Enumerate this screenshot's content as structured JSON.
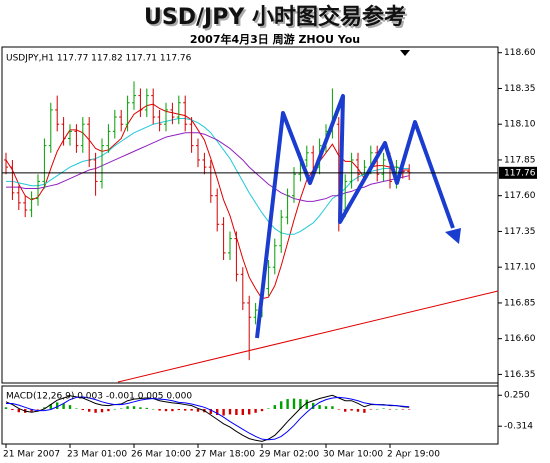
{
  "chart_data": [
    {
      "type": "candlestick",
      "title": "USD/JPY 小时图交易参考",
      "subtitle": "2007年4月3日    周游 ZHOU You",
      "info": "USDJPY,H1  117.77 117.82 117.71 117.76",
      "categories": [
        "21 Mar 2007",
        null,
        null,
        null,
        null,
        null,
        null,
        null,
        null,
        null,
        "23 Mar 01:00",
        null,
        null,
        null,
        null,
        null,
        null,
        null,
        null,
        null,
        "26 Mar 10:00",
        null,
        null,
        null,
        null,
        null,
        null,
        null,
        null,
        null,
        "27 Mar 18:00",
        null,
        null,
        null,
        null,
        null,
        null,
        null,
        null,
        null,
        "29 Mar 02:00",
        null,
        null,
        null,
        null,
        null,
        null,
        null,
        null,
        null,
        "30 Mar 10:00",
        null,
        null,
        null,
        null,
        null,
        null,
        null,
        null,
        null,
        "2 Apr 19:00",
        null,
        null,
        null
      ],
      "open": [
        117.85,
        117.8,
        117.62,
        117.55,
        117.5,
        117.58,
        117.7,
        117.95,
        118.2,
        118.1,
        118.0,
        118.05,
        117.95,
        118.1,
        117.85,
        117.7,
        117.95,
        118.05,
        118.15,
        118.1,
        118.25,
        118.3,
        118.2,
        118.3,
        118.15,
        118.1,
        118.2,
        118.15,
        118.25,
        118.1,
        117.95,
        117.85,
        117.8,
        117.6,
        117.4,
        117.2,
        117.3,
        117.05,
        116.85,
        116.75,
        116.8,
        116.95,
        117.1,
        117.25,
        117.45,
        117.6,
        117.75,
        117.85,
        117.9,
        117.8,
        117.95,
        118.05,
        118.1,
        117.5,
        117.7,
        117.85,
        117.75,
        117.8,
        117.9,
        117.75,
        117.85,
        117.7,
        117.8,
        117.77
      ],
      "high": [
        117.9,
        117.85,
        117.67,
        117.6,
        117.63,
        117.75,
        118.0,
        118.25,
        118.3,
        118.15,
        118.1,
        118.1,
        118.15,
        118.15,
        117.9,
        118.0,
        118.1,
        118.2,
        118.2,
        118.3,
        118.4,
        118.35,
        118.35,
        118.35,
        118.2,
        118.25,
        118.25,
        118.3,
        118.3,
        118.15,
        118.0,
        117.9,
        117.85,
        117.65,
        117.45,
        117.35,
        117.35,
        117.1,
        116.9,
        116.85,
        117.0,
        117.15,
        117.3,
        117.5,
        117.65,
        117.8,
        117.9,
        117.95,
        117.95,
        118.0,
        118.1,
        118.35,
        118.15,
        117.75,
        117.9,
        117.9,
        117.85,
        117.95,
        117.95,
        117.9,
        117.9,
        117.85,
        117.85,
        117.82
      ],
      "low": [
        117.75,
        117.57,
        117.5,
        117.45,
        117.45,
        117.53,
        117.65,
        117.9,
        118.05,
        117.95,
        117.95,
        117.9,
        117.9,
        117.8,
        117.6,
        117.65,
        117.9,
        118.0,
        118.05,
        118.05,
        118.2,
        118.15,
        118.15,
        118.1,
        118.05,
        118.05,
        118.1,
        118.1,
        118.05,
        117.9,
        117.8,
        117.75,
        117.55,
        117.35,
        117.15,
        117.15,
        117.0,
        116.8,
        116.45,
        116.7,
        116.75,
        116.9,
        117.05,
        117.2,
        117.4,
        117.55,
        117.7,
        117.8,
        117.75,
        117.75,
        117.9,
        118.0,
        117.35,
        117.45,
        117.65,
        117.7,
        117.7,
        117.75,
        117.7,
        117.7,
        117.65,
        117.65,
        117.72,
        117.71
      ],
      "close": [
        117.8,
        117.62,
        117.55,
        117.5,
        117.58,
        117.7,
        117.95,
        118.2,
        118.1,
        118.0,
        118.05,
        117.95,
        118.1,
        117.85,
        117.7,
        117.95,
        118.05,
        118.15,
        118.1,
        118.25,
        118.3,
        118.2,
        118.3,
        118.15,
        118.1,
        118.2,
        118.15,
        118.25,
        118.1,
        117.95,
        117.85,
        117.8,
        117.6,
        117.4,
        117.2,
        117.3,
        117.05,
        116.85,
        116.75,
        116.8,
        116.95,
        117.1,
        117.25,
        117.45,
        117.6,
        117.75,
        117.85,
        117.9,
        117.8,
        117.95,
        118.05,
        118.1,
        117.5,
        117.7,
        117.85,
        117.75,
        117.8,
        117.9,
        117.75,
        117.85,
        117.7,
        117.8,
        117.77,
        117.76
      ],
      "up_color": "#00a000",
      "down_color": "#d00000",
      "moving_averages": [
        {
          "color": "#e00000",
          "values": [
            117.85,
            117.78,
            117.68,
            117.6,
            117.57,
            117.59,
            117.66,
            117.79,
            117.91,
            117.99,
            118.06,
            118.06,
            118.04,
            117.99,
            117.93,
            117.91,
            117.92,
            117.96,
            118.0,
            118.1,
            118.17,
            118.2,
            118.23,
            118.24,
            118.21,
            118.19,
            118.18,
            118.17,
            118.16,
            118.13,
            118.06,
            117.99,
            117.86,
            117.72,
            117.57,
            117.46,
            117.31,
            117.16,
            117.03,
            116.95,
            116.88,
            116.89,
            116.97,
            117.11,
            117.27,
            117.43,
            117.58,
            117.71,
            117.78,
            117.84,
            117.9,
            117.96,
            117.88,
            117.84,
            117.84,
            117.79,
            117.72,
            117.8,
            117.81,
            117.81,
            117.8,
            117.8,
            117.78,
            117.78
          ]
        },
        {
          "color": "#22c8d8",
          "values": [
            117.7,
            117.7,
            117.69,
            117.68,
            117.67,
            117.67,
            117.68,
            117.71,
            117.74,
            117.77,
            117.8,
            117.82,
            117.84,
            117.85,
            117.86,
            117.88,
            117.91,
            117.95,
            117.98,
            118.01,
            118.04,
            118.06,
            118.08,
            118.1,
            118.11,
            118.12,
            118.13,
            118.14,
            118.14,
            118.13,
            118.11,
            118.08,
            118.04,
            117.98,
            117.92,
            117.86,
            117.78,
            117.7,
            117.62,
            117.55,
            117.48,
            117.42,
            117.37,
            117.34,
            117.33,
            117.33,
            117.35,
            117.38,
            117.41,
            117.46,
            117.52,
            117.58,
            117.61,
            117.65,
            117.7,
            117.73,
            117.75,
            117.77,
            117.78,
            117.79,
            117.79,
            117.8,
            117.79,
            117.79
          ]
        },
        {
          "color": "#9020c0",
          "values": [
            117.66,
            117.66,
            117.66,
            117.65,
            117.65,
            117.65,
            117.66,
            117.67,
            117.68,
            117.7,
            117.72,
            117.74,
            117.76,
            117.78,
            117.79,
            117.81,
            117.83,
            117.85,
            117.87,
            117.89,
            117.91,
            117.93,
            117.95,
            117.97,
            117.99,
            118.01,
            118.02,
            118.03,
            118.04,
            118.04,
            118.04,
            118.03,
            118.01,
            117.99,
            117.96,
            117.93,
            117.89,
            117.85,
            117.8,
            117.76,
            117.72,
            117.68,
            117.65,
            117.62,
            117.6,
            117.58,
            117.57,
            117.56,
            117.56,
            117.57,
            117.58,
            117.6,
            117.6,
            117.62,
            117.63,
            117.65,
            117.66,
            117.68,
            117.69,
            117.7,
            117.71,
            117.72,
            117.73,
            117.74
          ]
        }
      ],
      "ylim": [
        116.29,
        118.64
      ],
      "yticks": [
        {
          "value": 118.6,
          "label": "118.60"
        },
        118.35,
        {
          "value": 118.1,
          "label": "118.10"
        },
        117.85,
        {
          "value": 117.6,
          "label": "117.60"
        },
        117.35,
        {
          "value": 117.1,
          "label": "117.10"
        },
        116.85,
        {
          "value": 116.6,
          "label": "116.60"
        },
        116.35
      ],
      "last_price": 117.76
    },
    {
      "type": "macd",
      "label": "MACD(12,26,9) 0.003 -0.001 0.005 0.000",
      "histogram": {
        "up_color": "#00a000",
        "down_color": "#d00000",
        "values": [
          0.03,
          -0.02,
          -0.06,
          -0.07,
          -0.05,
          -0.01,
          0.03,
          0.09,
          0.12,
          0.1,
          0.07,
          0.01,
          -0.02,
          -0.05,
          -0.07,
          -0.06,
          -0.04,
          0,
          0.01,
          0.05,
          0.05,
          0.03,
          0.02,
          0,
          -0.03,
          -0.04,
          -0.04,
          -0.02,
          -0.03,
          -0.03,
          -0.05,
          -0.06,
          -0.09,
          -0.11,
          -0.12,
          -0.1,
          -0.11,
          -0.11,
          -0.1,
          -0.07,
          -0.04,
          0.01,
          0.07,
          0.14,
          0.18,
          0.19,
          0.18,
          0.17,
          0.11,
          0.07,
          0.05,
          0.05,
          -0.01,
          -0.05,
          -0.03,
          -0.05,
          -0.07,
          -0.01,
          0,
          0.01,
          -0.01,
          0,
          -0.01,
          -0.01
        ]
      },
      "series": [
        {
          "color": "#000000",
          "values": [
            0.13,
            0.08,
            0.01,
            -0.04,
            -0.06,
            -0.04,
            0,
            0.08,
            0.16,
            0.2,
            0.24,
            0.22,
            0.2,
            0.15,
            0.1,
            0.07,
            0.06,
            0.08,
            0.09,
            0.15,
            0.18,
            0.19,
            0.2,
            0.19,
            0.15,
            0.13,
            0.11,
            0.1,
            0.08,
            0.06,
            0.01,
            -0.03,
            -0.11,
            -0.19,
            -0.27,
            -0.33,
            -0.41,
            -0.48,
            -0.54,
            -0.57,
            -0.59,
            -0.55,
            -0.48,
            -0.36,
            -0.23,
            -0.11,
            0.01,
            0.11,
            0.15,
            0.19,
            0.22,
            0.25,
            0.2,
            0.15,
            0.15,
            0.1,
            0.04,
            0.08,
            0.08,
            0.08,
            0.06,
            0.06,
            0.04,
            0.03
          ]
        },
        {
          "color": "#0000ff",
          "values": [
            0.1,
            0.1,
            0.07,
            0.03,
            -0.01,
            -0.03,
            -0.03,
            -0.01,
            0.04,
            0.1,
            0.17,
            0.21,
            0.22,
            0.2,
            0.17,
            0.13,
            0.1,
            0.08,
            0.08,
            0.1,
            0.13,
            0.16,
            0.18,
            0.19,
            0.18,
            0.17,
            0.15,
            0.12,
            0.11,
            0.09,
            0.06,
            0.03,
            -0.02,
            -0.08,
            -0.15,
            -0.23,
            -0.3,
            -0.37,
            -0.44,
            -0.5,
            -0.55,
            -0.56,
            -0.55,
            -0.5,
            -0.41,
            -0.3,
            -0.17,
            -0.06,
            0.04,
            0.12,
            0.17,
            0.2,
            0.21,
            0.2,
            0.18,
            0.15,
            0.11,
            0.09,
            0.08,
            0.07,
            0.07,
            0.06,
            0.05,
            0.04
          ]
        }
      ],
      "ylim": [
        -0.62,
        0.4
      ],
      "yticks": [
        {
          "value": 0.25,
          "label": "0.250"
        },
        -0.314
      ]
    }
  ]
}
